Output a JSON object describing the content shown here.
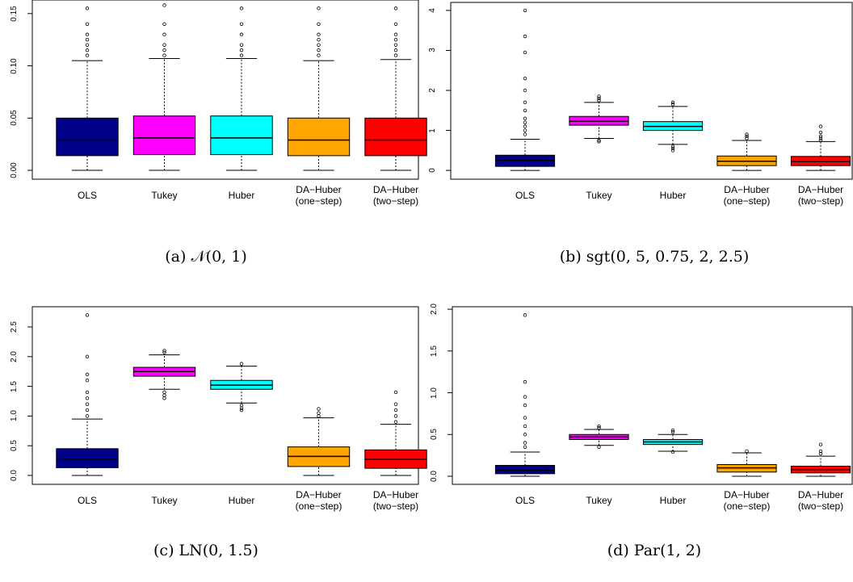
{
  "chart_data": [
    {
      "type": "box",
      "caption": "(a) 𝒩(0, 1)",
      "categories": [
        "OLS",
        "Tukey",
        "Huber",
        "DA−Huber\n(one−step)",
        "DA−Huber\n(two−step)"
      ],
      "ylim": [
        -0.0085,
        0.163
      ],
      "yticks": [
        {
          "value": 0,
          "label": "0.00"
        },
        {
          "value": 0.05,
          "label": "0.05"
        },
        {
          "value": 0.1,
          "label": "0.10"
        },
        {
          "value": 0.15,
          "label": "0.15"
        }
      ],
      "boxes": [
        {
          "color": "#00008b",
          "whisker_low": 0,
          "q1": 0.014,
          "median": 0.029,
          "q3": 0.05,
          "whisker_high": 0.105,
          "outliers": [
            0.11,
            0.115,
            0.12,
            0.125,
            0.13,
            0.14,
            0.155
          ]
        },
        {
          "color": "#ff00ff",
          "whisker_low": 0,
          "q1": 0.015,
          "median": 0.031,
          "q3": 0.052,
          "whisker_high": 0.107,
          "outliers": [
            0.11,
            0.115,
            0.12,
            0.13,
            0.14,
            0.158
          ]
        },
        {
          "color": "#00ffff",
          "whisker_low": 0,
          "q1": 0.015,
          "median": 0.031,
          "q3": 0.052,
          "whisker_high": 0.107,
          "outliers": [
            0.11,
            0.115,
            0.12,
            0.13,
            0.14,
            0.155
          ]
        },
        {
          "color": "#ffa500",
          "whisker_low": 0,
          "q1": 0.014,
          "median": 0.029,
          "q3": 0.05,
          "whisker_high": 0.105,
          "outliers": [
            0.11,
            0.115,
            0.12,
            0.125,
            0.13,
            0.14,
            0.155
          ]
        },
        {
          "color": "#ff0000",
          "whisker_low": 0,
          "q1": 0.014,
          "median": 0.029,
          "q3": 0.05,
          "whisker_high": 0.106,
          "outliers": [
            0.11,
            0.115,
            0.12,
            0.125,
            0.13,
            0.14,
            0.155
          ]
        }
      ]
    },
    {
      "type": "box",
      "caption": "(b) sgt(0, 5, 0.75, 2, 2.5)",
      "categories": [
        "OLS",
        "Tukey",
        "Huber",
        "DA−Huber\n(one−step)",
        "DA−Huber\n(two−step)"
      ],
      "ylim": [
        -0.22,
        4.2
      ],
      "yticks": [
        0,
        1,
        2,
        3,
        4
      ],
      "boxes": [
        {
          "color": "#00008b",
          "whisker_low": 0,
          "q1": 0.1,
          "median": 0.25,
          "q3": 0.38,
          "whisker_high": 0.78,
          "outliers": [
            0.9,
            1.0,
            1.1,
            1.2,
            1.3,
            1.5,
            1.7,
            2.0,
            2.3,
            2.95,
            3.35,
            4.0
          ]
        },
        {
          "color": "#ff00ff",
          "whisker_low": 0.8,
          "q1": 1.13,
          "median": 1.23,
          "q3": 1.35,
          "whisker_high": 1.7,
          "outliers": [
            0.72,
            0.75,
            1.75,
            1.8,
            1.85
          ]
        },
        {
          "color": "#00ffff",
          "whisker_low": 0.65,
          "q1": 1.0,
          "median": 1.1,
          "q3": 1.22,
          "whisker_high": 1.6,
          "outliers": [
            0.5,
            0.55,
            0.6,
            1.65,
            1.7
          ]
        },
        {
          "color": "#ffa500",
          "whisker_low": 0,
          "q1": 0.12,
          "median": 0.23,
          "q3": 0.36,
          "whisker_high": 0.75,
          "outliers": [
            0.8,
            0.85,
            0.9
          ]
        },
        {
          "color": "#ff0000",
          "whisker_low": 0,
          "q1": 0.12,
          "median": 0.22,
          "q3": 0.35,
          "whisker_high": 0.72,
          "outliers": [
            0.75,
            0.8,
            0.85,
            0.95,
            1.1
          ]
        }
      ]
    },
    {
      "type": "box",
      "caption": "(c) LN(0, 1.5)",
      "categories": [
        "OLS",
        "Tukey",
        "Huber",
        "DA−Huber\n(one−step)",
        "DA−Huber\n(two−step)"
      ],
      "ylim": [
        -0.15,
        2.84
      ],
      "yticks": [
        {
          "value": 0,
          "label": "0.0"
        },
        0.5,
        {
          "value": 1,
          "label": "1.0"
        },
        1.5,
        {
          "value": 2,
          "label": "2.0"
        },
        2.5
      ],
      "boxes": [
        {
          "color": "#00008b",
          "whisker_low": 0,
          "q1": 0.13,
          "median": 0.27,
          "q3": 0.45,
          "whisker_high": 0.95,
          "outliers": [
            1.0,
            1.1,
            1.2,
            1.3,
            1.4,
            1.6,
            1.7,
            2.0,
            2.7
          ]
        },
        {
          "color": "#ff00ff",
          "whisker_low": 1.45,
          "q1": 1.67,
          "median": 1.75,
          "q3": 1.82,
          "whisker_high": 2.03,
          "outliers": [
            1.3,
            1.35,
            1.4,
            2.07,
            2.1
          ]
        },
        {
          "color": "#00ffff",
          "whisker_low": 1.22,
          "q1": 1.45,
          "median": 1.52,
          "q3": 1.6,
          "whisker_high": 1.84,
          "outliers": [
            1.1,
            1.13,
            1.18,
            1.88
          ]
        },
        {
          "color": "#ffa500",
          "whisker_low": 0,
          "q1": 0.15,
          "median": 0.32,
          "q3": 0.48,
          "whisker_high": 0.97,
          "outliers": [
            1.0,
            1.05,
            1.12
          ]
        },
        {
          "color": "#ff0000",
          "whisker_low": 0,
          "q1": 0.12,
          "median": 0.27,
          "q3": 0.43,
          "whisker_high": 0.86,
          "outliers": [
            0.9,
            1.0,
            1.1,
            1.2,
            1.4
          ]
        }
      ]
    },
    {
      "type": "box",
      "caption": "(d) Par(1, 2)",
      "categories": [
        "OLS",
        "Tukey",
        "Huber",
        "DA−Huber\n(one−step)",
        "DA−Huber\n(two−step)"
      ],
      "ylim": [
        -0.097,
        2.03
      ],
      "yticks": [
        {
          "value": 0,
          "label": "0.0"
        },
        0.5,
        {
          "value": 1,
          "label": "1.0"
        },
        1.5,
        {
          "value": 2,
          "label": "2.0"
        }
      ],
      "boxes": [
        {
          "color": "#00008b",
          "whisker_low": 0,
          "q1": 0.03,
          "median": 0.07,
          "q3": 0.13,
          "whisker_high": 0.29,
          "outliers": [
            0.35,
            0.4,
            0.5,
            0.6,
            0.7,
            0.85,
            0.95,
            1.13,
            1.93
          ]
        },
        {
          "color": "#ff00ff",
          "whisker_low": 0.37,
          "q1": 0.44,
          "median": 0.47,
          "q3": 0.5,
          "whisker_high": 0.56,
          "outliers": [
            0.35,
            0.58,
            0.6
          ]
        },
        {
          "color": "#00ffff",
          "whisker_low": 0.3,
          "q1": 0.38,
          "median": 0.41,
          "q3": 0.44,
          "whisker_high": 0.5,
          "outliers": [
            0.29,
            0.53,
            0.55
          ]
        },
        {
          "color": "#ffa500",
          "whisker_low": 0,
          "q1": 0.05,
          "median": 0.1,
          "q3": 0.14,
          "whisker_high": 0.28,
          "outliers": [
            0.3
          ]
        },
        {
          "color": "#ff0000",
          "whisker_low": 0,
          "q1": 0.04,
          "median": 0.08,
          "q3": 0.12,
          "whisker_high": 0.24,
          "outliers": [
            0.27,
            0.3,
            0.38
          ]
        }
      ]
    }
  ]
}
